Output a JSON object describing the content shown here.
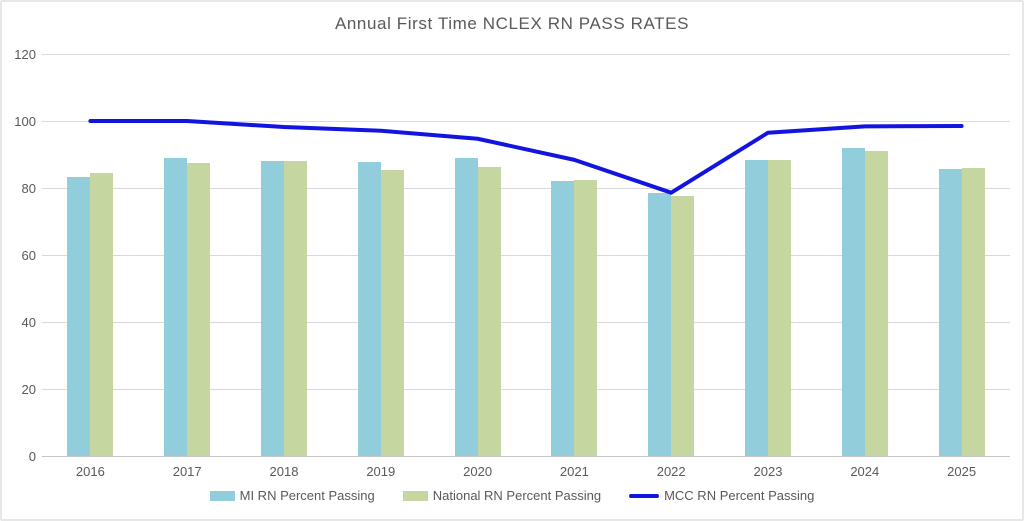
{
  "chart_data": {
    "type": "bar",
    "subtype": "grouped-bars-with-line-overlay",
    "title": "Annual First Time NCLEX RN PASS RATES",
    "categories": [
      "2016",
      "2017",
      "2018",
      "2019",
      "2020",
      "2021",
      "2022",
      "2023",
      "2024",
      "2025"
    ],
    "series": [
      {
        "name": "MI RN Percent Passing",
        "type": "bar",
        "color": "#92cddc",
        "values": [
          83.4,
          88.9,
          88.0,
          87.8,
          88.9,
          82.1,
          78.4,
          88.3,
          92.0,
          85.8
        ]
      },
      {
        "name": "National RN Percent Passing",
        "type": "bar",
        "color": "#c5d6a0",
        "values": [
          84.5,
          87.6,
          88.1,
          85.3,
          86.4,
          82.4,
          77.5,
          88.4,
          91.0,
          86.0
        ]
      },
      {
        "name": "MCC RN Percent Passing",
        "type": "line",
        "color": "#1414e0",
        "values": [
          100,
          100,
          98.2,
          97.1,
          94.7,
          88.4,
          78.6,
          96.5,
          98.4,
          98.5
        ]
      }
    ],
    "xlabel": "",
    "ylabel": "",
    "ylim": [
      0,
      120
    ],
    "ytick_labels": [
      "0",
      "20",
      "40",
      "60",
      "80",
      "100",
      "120"
    ],
    "grid": "horizontal",
    "legend_position": "bottom"
  },
  "colors": {
    "background": "#ffffff",
    "frame_border": "#e7e7e7",
    "gridline": "#d9d9d9",
    "axis_line": "#c6c6c6",
    "text": "#595959"
  }
}
